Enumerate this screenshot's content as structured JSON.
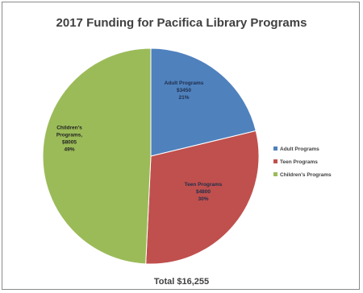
{
  "chart_data": {
    "type": "pie",
    "title": "2017 Funding for Pacifica Library Programs",
    "total_label": "Total $16,255",
    "slices": [
      {
        "name": "Adult Programs",
        "value": 3450,
        "label_lines": [
          "Adult Programs",
          "$3450",
          "21%"
        ],
        "color": "#4f81bd"
      },
      {
        "name": "Teen Programs",
        "value": 4800,
        "label_lines": [
          "Teen Programs",
          "$4800",
          "30%"
        ],
        "color": "#c0504d"
      },
      {
        "name": "Children's Programs",
        "value": 8005,
        "label_lines": [
          "Children's",
          "Programs,",
          "$8005",
          "49%"
        ],
        "color": "#9bbb59"
      }
    ],
    "legend": {
      "position": "right",
      "items": [
        "Adult Programs",
        "Teen Programs",
        "Children's Programs"
      ]
    }
  }
}
